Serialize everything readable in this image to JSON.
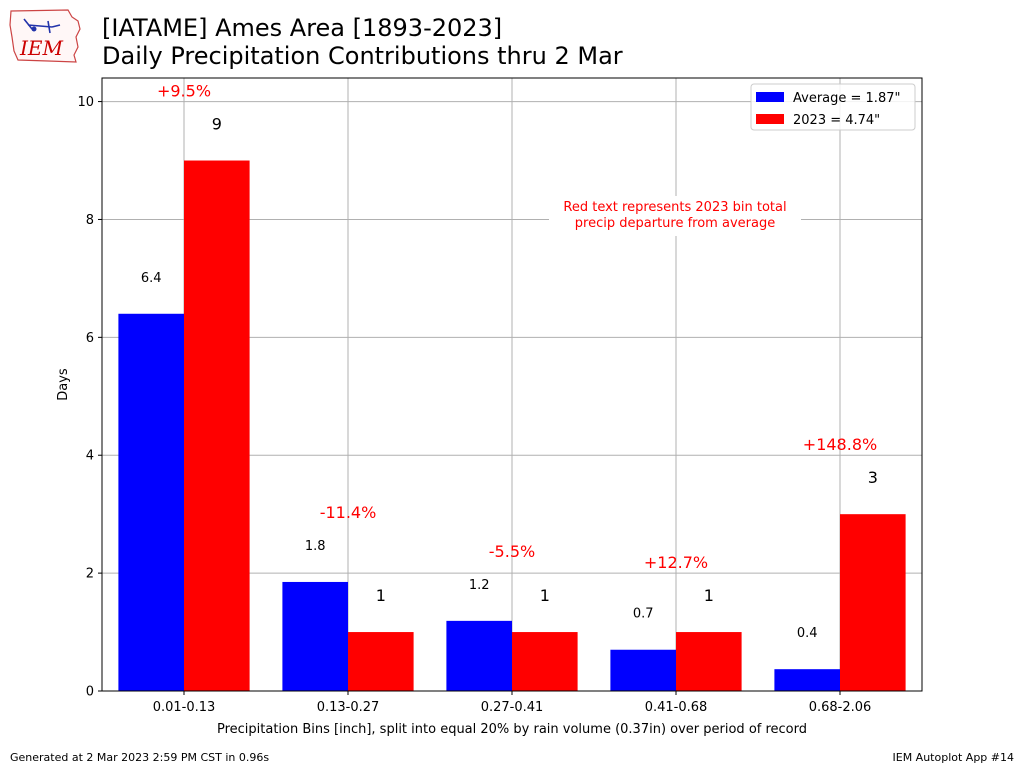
{
  "header": {
    "title_line1": "[IATAME] Ames Area [1893-2023]",
    "title_line2": "Daily Precipitation Contributions thru 2 Mar",
    "logo_text": "IEM"
  },
  "footer": {
    "left": "Generated at 2 Mar 2023 2:59 PM CST in 0.96s",
    "right": "IEM Autoplot App #14"
  },
  "colors": {
    "average": "#0000ff",
    "current": "#ff0000",
    "grid": "#b0b0b0",
    "logo": "#cc0000"
  },
  "chart_data": {
    "type": "bar",
    "categories": [
      "0.01-0.13",
      "0.13-0.27",
      "0.27-0.41",
      "0.41-0.68",
      "0.68-2.06"
    ],
    "series": [
      {
        "name": "Average = 1.87\"",
        "values": [
          6.4,
          1.85,
          1.19,
          0.7,
          0.37
        ],
        "labels": [
          "6.4",
          "1.8",
          "1.2",
          "0.7",
          "0.4"
        ],
        "color": "#0000ff"
      },
      {
        "name": "2023 = 4.74\"",
        "values": [
          9,
          1,
          1,
          1,
          3
        ],
        "labels": [
          "9",
          "1",
          "1",
          "1",
          "3"
        ],
        "color": "#ff0000"
      }
    ],
    "departures": [
      "+9.5%",
      "-11.4%",
      "-5.5%",
      "+12.7%",
      "+148.8%"
    ],
    "annotation": "Red text represents 2023 bin total\nprecip departure from average",
    "xlabel": "Precipitation Bins [inch], split into equal 20% by rain volume (0.37in) over period of record",
    "ylabel": "Days",
    "ylim": [
      0,
      10.4
    ],
    "yticks": [
      0,
      2,
      4,
      6,
      8,
      10
    ],
    "grid": true,
    "legend_position": "top-right"
  }
}
